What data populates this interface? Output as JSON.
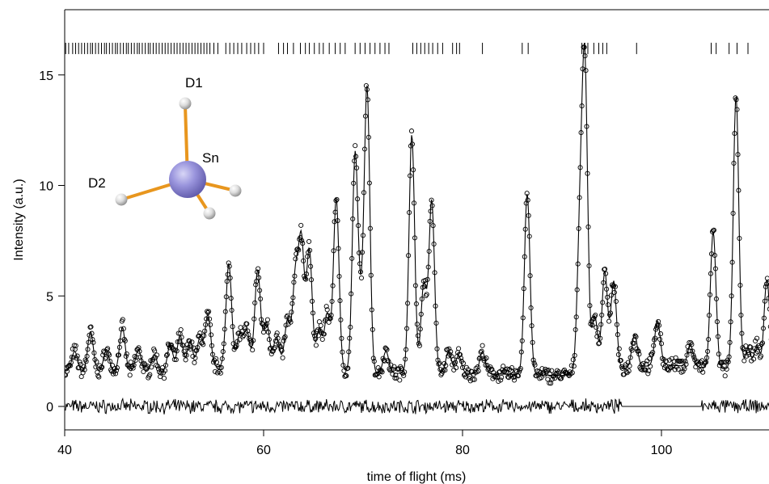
{
  "chart_data": {
    "type": "scatter",
    "title": "",
    "xlabel": "time of flight (ms)",
    "ylabel": "Intensity (a.u.)",
    "xlim": [
      40,
      112
    ],
    "ylim": [
      -1,
      18
    ],
    "x_ticks": [
      "40",
      "60",
      "80",
      "100"
    ],
    "y_ticks": [
      "0",
      "5",
      "10",
      "15"
    ],
    "grid": false,
    "legend": "none",
    "series": [
      {
        "kind": "observed",
        "marker": "open-circle"
      },
      {
        "kind": "calculated",
        "marker": "line"
      },
      {
        "kind": "difference",
        "marker": "line",
        "offset": 0
      },
      {
        "kind": "reflection-positions",
        "marker": "vertical-tick",
        "y": 16.2
      }
    ],
    "baseline": [
      [
        40,
        1.6
      ],
      [
        50,
        1.55
      ],
      [
        60,
        2.0
      ],
      [
        70,
        1.5
      ],
      [
        80,
        1.5
      ],
      [
        90,
        1.4
      ],
      [
        100,
        1.9
      ],
      [
        112,
        1.5
      ]
    ],
    "peaks": [
      [
        41.0,
        0.9
      ],
      [
        42.6,
        1.8
      ],
      [
        44.2,
        1.0
      ],
      [
        45.8,
        2.0
      ],
      [
        47.4,
        1.0
      ],
      [
        49.0,
        0.8
      ],
      [
        50.6,
        1.2
      ],
      [
        51.6,
        1.6
      ],
      [
        52.6,
        1.3
      ],
      [
        53.6,
        1.4
      ],
      [
        54.4,
        2.4
      ],
      [
        56.5,
        4.6
      ],
      [
        57.6,
        1.4
      ],
      [
        58.3,
        1.5
      ],
      [
        59.4,
        4.2
      ],
      [
        60.3,
        1.8
      ],
      [
        61.3,
        1.2
      ],
      [
        62.4,
        2.0
      ],
      [
        63.2,
        4.0
      ],
      [
        63.8,
        5.6
      ],
      [
        64.6,
        5.3
      ],
      [
        65.6,
        1.8
      ],
      [
        66.4,
        2.5
      ],
      [
        67.3,
        7.8
      ],
      [
        69.2,
        9.8
      ],
      [
        69.8,
        2.2
      ],
      [
        70.4,
        12.8
      ],
      [
        72.3,
        1.0
      ],
      [
        74.9,
        10.8
      ],
      [
        76.1,
        4.0
      ],
      [
        76.9,
        7.8
      ],
      [
        78.6,
        1.0
      ],
      [
        79.6,
        0.8
      ],
      [
        82.0,
        1.0
      ],
      [
        86.5,
        8.2
      ],
      [
        91.8,
        6.0
      ],
      [
        92.3,
        13.5
      ],
      [
        93.3,
        2.5
      ],
      [
        94.3,
        4.5
      ],
      [
        95.2,
        4.0
      ],
      [
        97.3,
        1.5
      ],
      [
        99.6,
        2.0
      ],
      [
        102.9,
        1.0
      ],
      [
        105.2,
        6.2
      ],
      [
        107.5,
        12.4
      ],
      [
        108.7,
        1.0
      ],
      [
        109.6,
        1.2
      ],
      [
        110.6,
        4.2
      ],
      [
        111.5,
        1.5
      ]
    ],
    "peak_width": 0.28,
    "reflection_ticks": [
      40.1,
      40.4,
      40.8,
      41.1,
      41.4,
      41.7,
      42.0,
      42.3,
      42.6,
      42.8,
      43.1,
      43.4,
      43.7,
      44.0,
      44.2,
      44.5,
      44.8,
      45.1,
      45.3,
      45.6,
      45.9,
      46.2,
      46.4,
      46.7,
      47.0,
      47.3,
      47.5,
      47.8,
      48.1,
      48.4,
      48.6,
      48.9,
      49.2,
      49.5,
      49.8,
      50.1,
      50.4,
      50.7,
      51.0,
      51.3,
      51.6,
      51.9,
      52.2,
      52.5,
      52.8,
      53.1,
      53.4,
      53.7,
      54.0,
      54.3,
      54.6,
      55.0,
      55.4,
      56.2,
      56.6,
      57.0,
      57.4,
      57.8,
      58.3,
      58.7,
      59.1,
      59.5,
      60.0,
      61.5,
      62.0,
      62.4,
      63.0,
      63.7,
      64.2,
      64.6,
      65.1,
      65.6,
      66.0,
      66.6,
      67.2,
      67.7,
      68.2,
      69.2,
      69.7,
      70.2,
      70.7,
      71.2,
      71.7,
      72.2,
      72.6,
      75.0,
      75.4,
      75.8,
      76.2,
      76.6,
      77.0,
      77.5,
      78.0,
      79.0,
      79.4,
      79.7,
      82.0,
      86.0,
      86.6,
      92.0,
      92.3,
      92.6,
      93.2,
      93.7,
      94.1,
      94.5,
      97.5,
      105.0,
      105.5,
      106.8,
      107.6,
      108.7,
      111.4
    ]
  },
  "annotations": {
    "d1": "D1",
    "d2": "D2",
    "sn": "Sn"
  },
  "colors": {
    "axis": "#000000",
    "curve": "#000000",
    "bond": "#e8961e",
    "sn_atom": "#8a86d6",
    "d_atom": "#d8d8d8"
  }
}
